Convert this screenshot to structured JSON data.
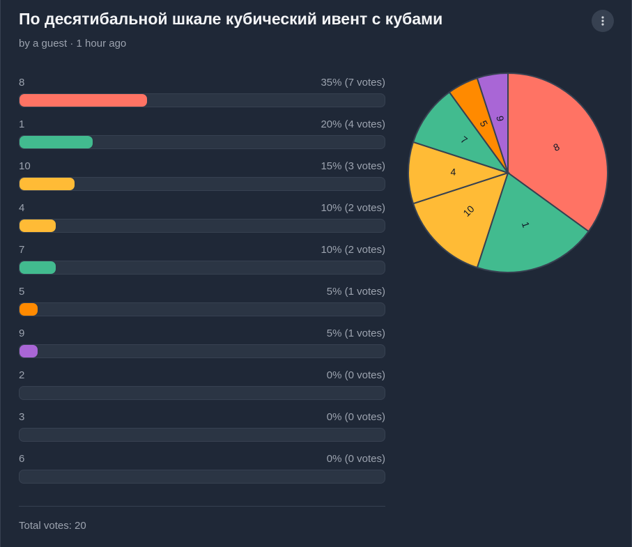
{
  "poll": {
    "title": "По десятибальной шкале кубический ивент с кубами",
    "byline": "by a guest · 1 hour ago",
    "total_label": "Total votes: 20",
    "total_votes": 20
  },
  "options": [
    {
      "label": "8",
      "percent_text": "35% (7 votes)",
      "fraction": 0.35,
      "color": "#ff7364"
    },
    {
      "label": "1",
      "percent_text": "20% (4 votes)",
      "fraction": 0.2,
      "color": "#42bb8f"
    },
    {
      "label": "10",
      "percent_text": "15% (3 votes)",
      "fraction": 0.15,
      "color": "#ffbb36"
    },
    {
      "label": "4",
      "percent_text": "10% (2 votes)",
      "fraction": 0.1,
      "color": "#ffbb36"
    },
    {
      "label": "7",
      "percent_text": "10% (2 votes)",
      "fraction": 0.1,
      "color": "#42bb8f"
    },
    {
      "label": "5",
      "percent_text": "5% (1 votes)",
      "fraction": 0.05,
      "color": "#ff8a00"
    },
    {
      "label": "9",
      "percent_text": "5% (1 votes)",
      "fraction": 0.05,
      "color": "#a966d6"
    },
    {
      "label": "2",
      "percent_text": "0% (0 votes)",
      "fraction": 0.0,
      "color": "#6b7280"
    },
    {
      "label": "3",
      "percent_text": "0% (0 votes)",
      "fraction": 0.0,
      "color": "#6b7280"
    },
    {
      "label": "6",
      "percent_text": "0% (0 votes)",
      "fraction": 0.0,
      "color": "#6b7280"
    }
  ],
  "chart_data": {
    "type": "pie",
    "slices": [
      {
        "label": "8",
        "value": 7,
        "color": "#ff7364"
      },
      {
        "label": "1",
        "value": 4,
        "color": "#42bb8f"
      },
      {
        "label": "10",
        "value": 3,
        "color": "#ffbb36"
      },
      {
        "label": "4",
        "value": 2,
        "color": "#ffbb36"
      },
      {
        "label": "7",
        "value": 2,
        "color": "#42bb8f"
      },
      {
        "label": "5",
        "value": 1,
        "color": "#ff8a00"
      },
      {
        "label": "9",
        "value": 1,
        "color": "#a966d6"
      }
    ]
  },
  "icons": {
    "menu": "more-vertical-icon"
  }
}
